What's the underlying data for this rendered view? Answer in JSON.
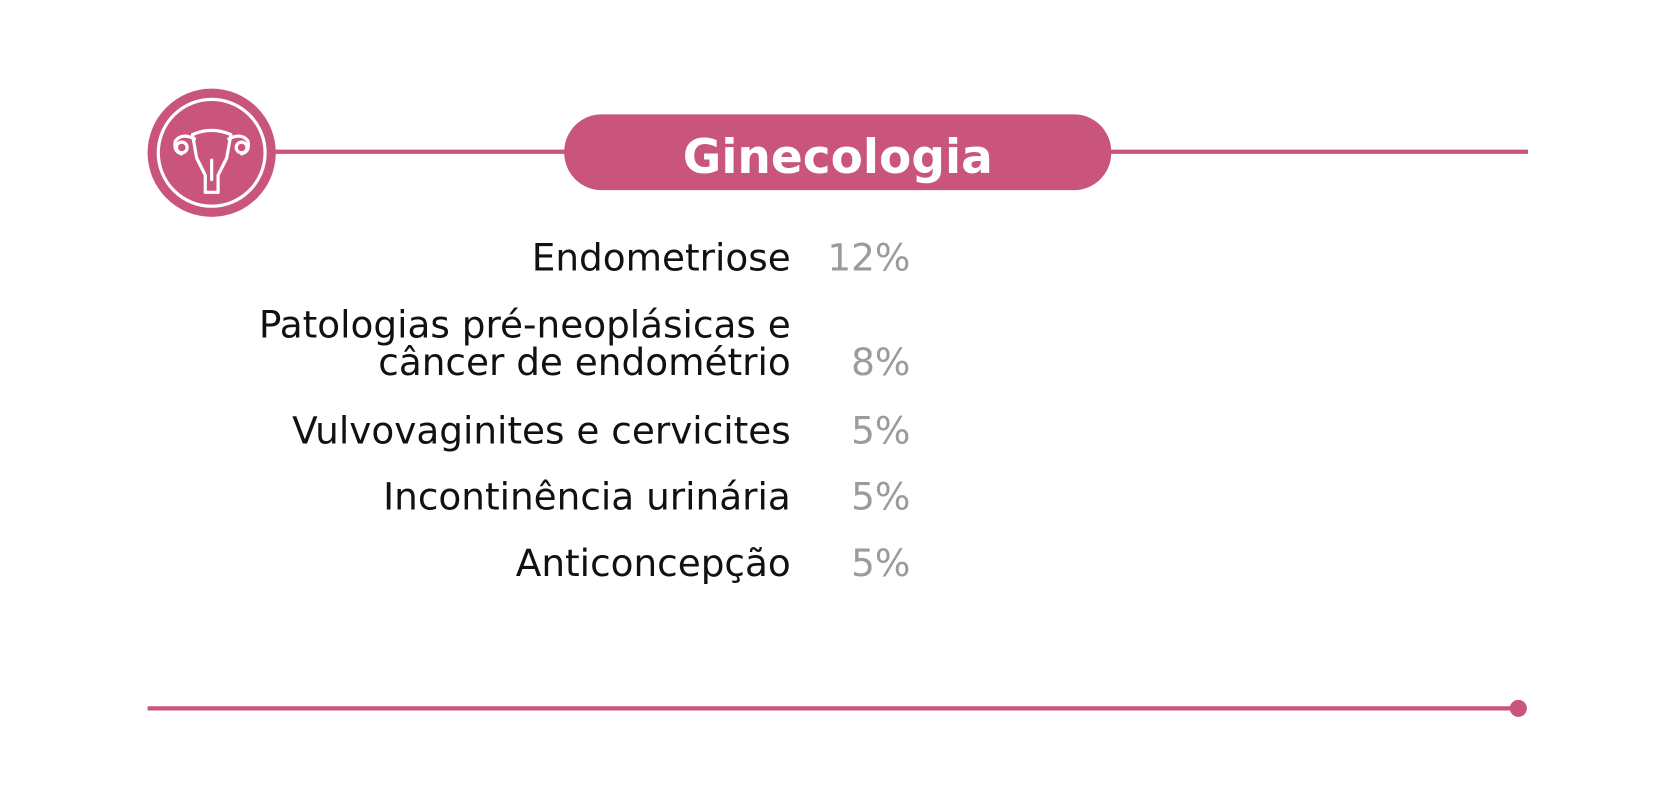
{
  "chart_data": {
    "type": "bar",
    "orientation": "horizontal",
    "title": "Ginecologia",
    "categories": [
      "Endometriose",
      "Patologias pré-neoplásicas e\ncâncer de endométrio",
      "Vulvovaginites e cervicites",
      "Incontinência urinária",
      "Anticoncepção"
    ],
    "values": [
      12,
      8,
      5,
      5,
      5
    ],
    "value_labels": [
      "12%",
      "8%",
      "5%",
      "5%",
      "5%"
    ],
    "color": [
      "#e8193f",
      "#c8106e"
    ]
  }
}
